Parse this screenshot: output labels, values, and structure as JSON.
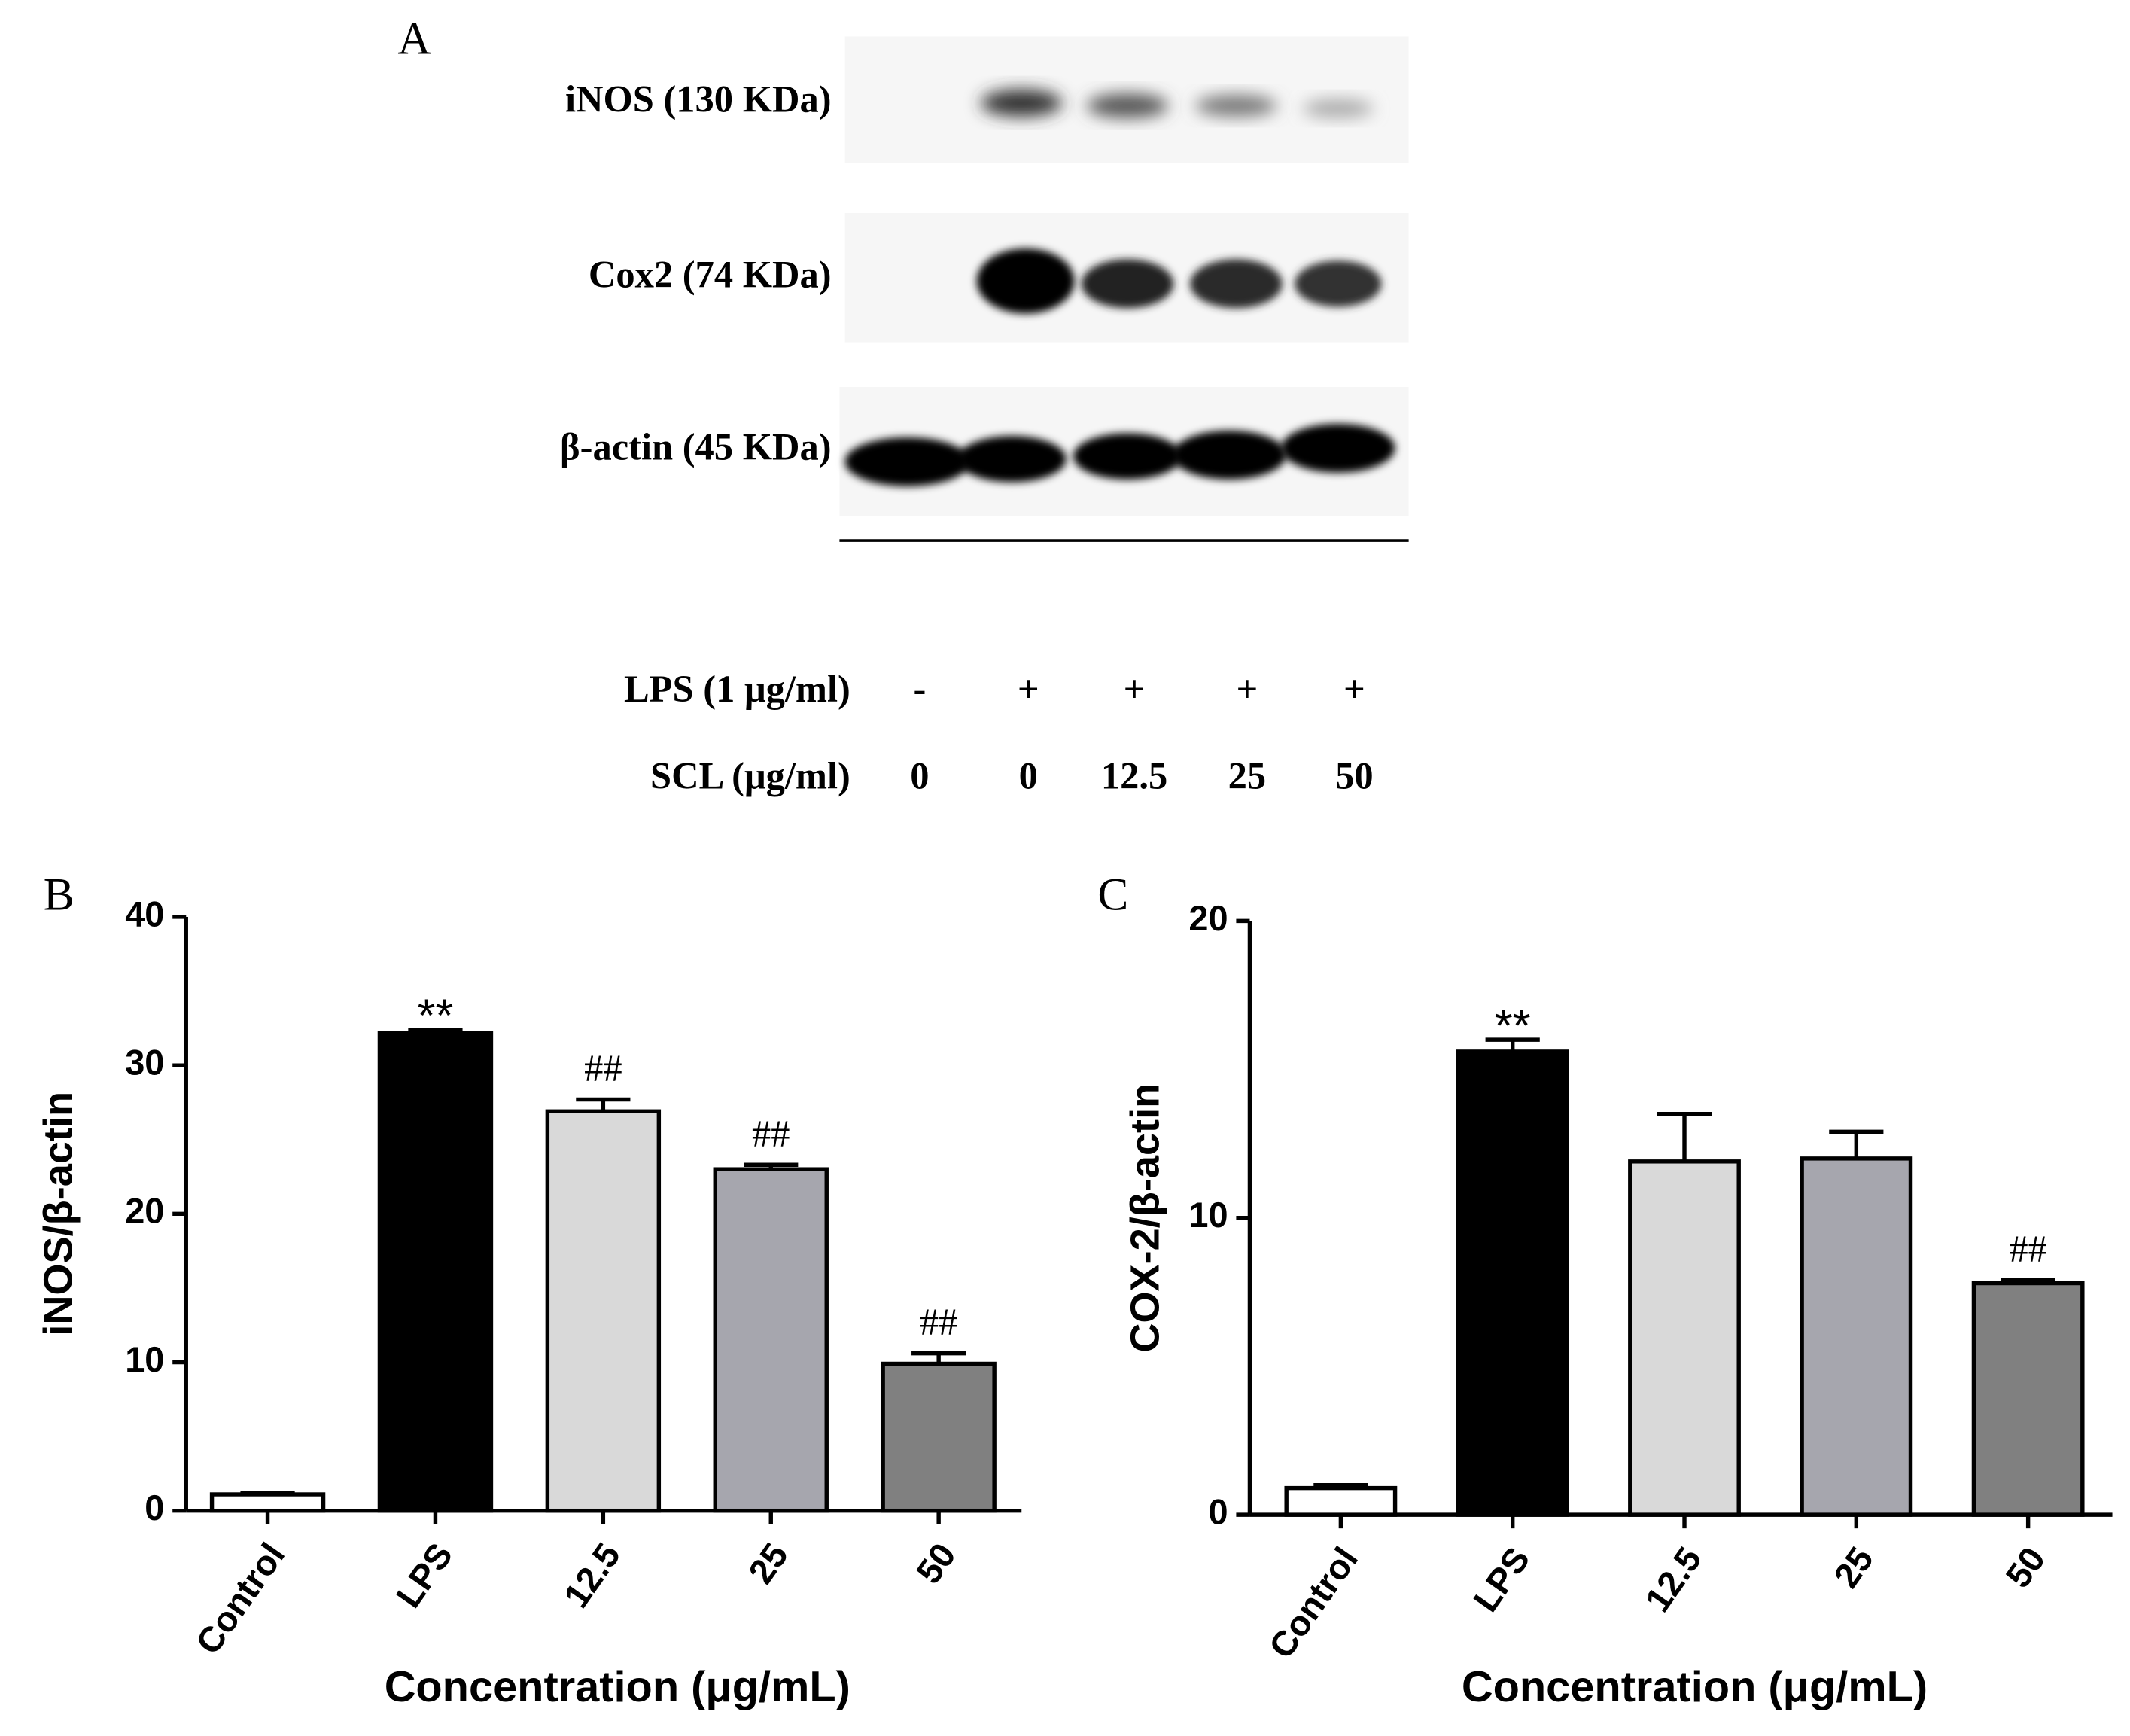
{
  "panel_a": {
    "label": "A",
    "bands": [
      "iNOS (130 KDa)",
      "Cox2 (74 KDa)",
      "β-actin (45 KDa)"
    ],
    "lps": {
      "label": "LPS (1 μg/ml)",
      "lanes": [
        "-",
        "+",
        "+",
        "+",
        "+"
      ]
    },
    "scl": {
      "label": "SCL (μg/ml)",
      "lanes": [
        "0",
        "0",
        "12.5",
        "25",
        "50"
      ]
    }
  },
  "chart_data": [
    {
      "type": "bar",
      "panel_label": "B",
      "y_label": "iNOS/β-actin",
      "x_label": "Concentration (μg/mL)",
      "categories": [
        "Control",
        "LPS",
        "12.5",
        "25",
        "50"
      ],
      "values": [
        1.1,
        32.2,
        26.9,
        23.0,
        9.9
      ],
      "errors": [
        0.1,
        0.2,
        0.8,
        0.3,
        0.7
      ],
      "annotations": [
        null,
        "**",
        "##",
        "##",
        "##"
      ],
      "colors": [
        "#ffffff",
        "#000000",
        "#d9d9d9",
        "#a6a6ae",
        "#808080"
      ],
      "ylim": [
        0,
        40
      ],
      "yticks": [
        0,
        10,
        20,
        30,
        40
      ]
    },
    {
      "type": "bar",
      "panel_label": "C",
      "y_label": "COX-2/β-actin",
      "x_label": "Concentration (μg/mL)",
      "categories": [
        "Control",
        "LPS",
        "12.5",
        "25",
        "50"
      ],
      "values": [
        0.9,
        15.6,
        11.9,
        12.0,
        7.8
      ],
      "errors": [
        0.1,
        0.4,
        1.6,
        0.9,
        0.1
      ],
      "annotations": [
        null,
        "**",
        null,
        null,
        "##"
      ],
      "colors": [
        "#ffffff",
        "#000000",
        "#d9d9d9",
        "#a6a6ae",
        "#808080"
      ],
      "ylim": [
        0,
        20
      ],
      "yticks": [
        0,
        10,
        20
      ]
    }
  ]
}
